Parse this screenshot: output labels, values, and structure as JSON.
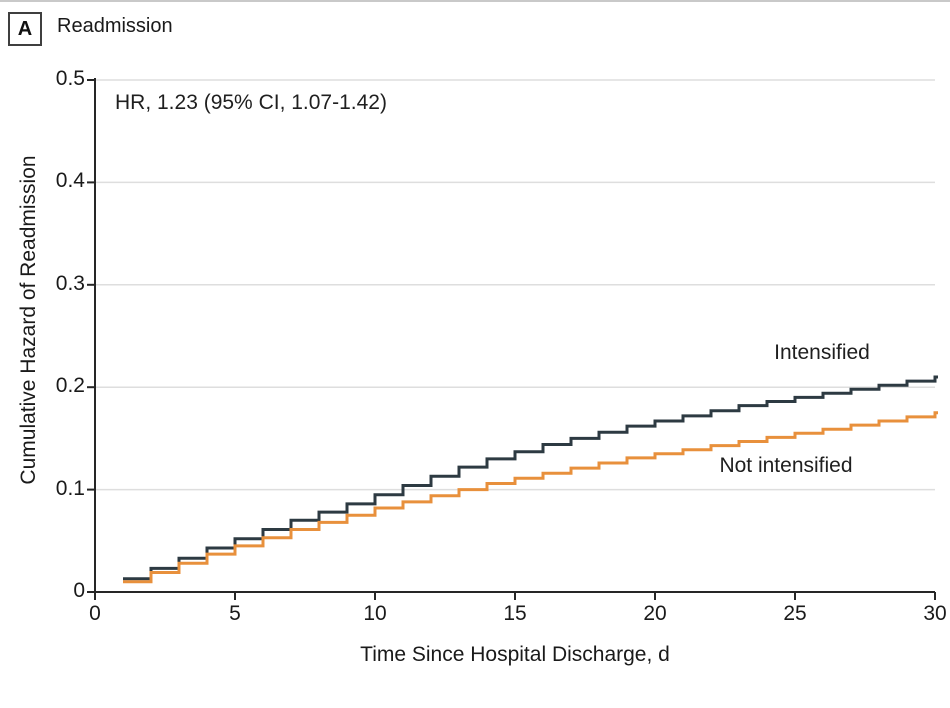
{
  "header": {
    "panel_label": "A"
  },
  "chart_data": {
    "type": "line",
    "subtype": "step",
    "title": "Readmission",
    "xlabel": "Time Since Hospital Discharge, d",
    "ylabel": "Cumulative Hazard of Readmission",
    "annotation": "HR, 1.23 (95% CI, 1.07-1.42)",
    "xlim": [
      0,
      30
    ],
    "ylim": [
      0,
      0.5
    ],
    "x_ticks": [
      0,
      5,
      10,
      15,
      20,
      25,
      30
    ],
    "y_ticks": [
      0,
      0.1,
      0.2,
      0.3,
      0.4,
      0.5
    ],
    "grid": "horizontal",
    "legend_position": "inline-labels",
    "axis_color": "#262626",
    "grid_color": "#dedede",
    "days": [
      1,
      2,
      3,
      4,
      5,
      6,
      7,
      8,
      9,
      10,
      11,
      12,
      13,
      14,
      15,
      16,
      17,
      18,
      19,
      20,
      21,
      22,
      23,
      24,
      25,
      26,
      27,
      28,
      29,
      30
    ],
    "series": [
      {
        "name": "Intensified",
        "color": "#2d3a42",
        "values": [
          0.013,
          0.023,
          0.033,
          0.043,
          0.052,
          0.061,
          0.07,
          0.078,
          0.086,
          0.095,
          0.104,
          0.113,
          0.122,
          0.13,
          0.137,
          0.144,
          0.15,
          0.156,
          0.162,
          0.167,
          0.172,
          0.177,
          0.182,
          0.186,
          0.19,
          0.194,
          0.198,
          0.202,
          0.206,
          0.21
        ]
      },
      {
        "name": "Not intensified",
        "color": "#e8903c",
        "values": [
          0.01,
          0.019,
          0.028,
          0.037,
          0.045,
          0.053,
          0.061,
          0.068,
          0.075,
          0.082,
          0.088,
          0.094,
          0.1,
          0.106,
          0.111,
          0.116,
          0.121,
          0.126,
          0.131,
          0.135,
          0.139,
          0.143,
          0.147,
          0.151,
          0.155,
          0.159,
          0.163,
          0.167,
          0.171,
          0.175
        ]
      }
    ]
  }
}
